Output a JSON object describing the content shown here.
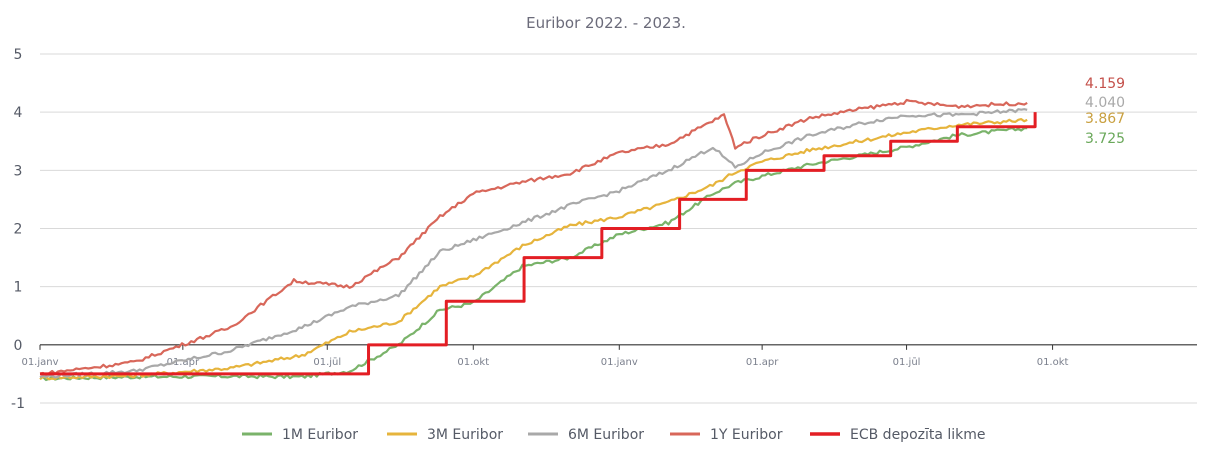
{
  "chart_data": {
    "type": "line",
    "title": "Euribor 2022. - 2023.",
    "xlabel": "",
    "ylabel": "",
    "ylim": [
      -1,
      5
    ],
    "y_ticks": [
      "5",
      "4",
      "3",
      "2",
      "1",
      "0",
      "-1"
    ],
    "x_ticks": [
      "01.janv",
      "01.apr",
      "01.jūl",
      "01.okt",
      "01.janv",
      "01.apr",
      "01.jūl",
      "01.okt"
    ],
    "grid": true,
    "legend": "bottom",
    "end_labels": [
      "4.159",
      "4.040",
      "3.867",
      "3.725"
    ],
    "series": [
      {
        "name": "1M Euribor",
        "color": "#7ab36a",
        "points": [
          [
            "2022-01-01",
            -0.58
          ],
          [
            "2022-03-01",
            -0.55
          ],
          [
            "2022-05-01",
            -0.54
          ],
          [
            "2022-06-15",
            -0.55
          ],
          [
            "2022-07-15",
            -0.45
          ],
          [
            "2022-08-15",
            0.0
          ],
          [
            "2022-09-10",
            0.6
          ],
          [
            "2022-10-01",
            0.72
          ],
          [
            "2022-11-01",
            1.35
          ],
          [
            "2022-12-01",
            1.5
          ],
          [
            "2023-01-01",
            1.9
          ],
          [
            "2023-02-01",
            2.1
          ],
          [
            "2023-03-01",
            2.6
          ],
          [
            "2023-03-15",
            2.78
          ],
          [
            "2023-04-01",
            2.9
          ],
          [
            "2023-05-01",
            3.1
          ],
          [
            "2023-06-01",
            3.25
          ],
          [
            "2023-07-01",
            3.4
          ],
          [
            "2023-08-01",
            3.6
          ],
          [
            "2023-09-15",
            3.725
          ]
        ]
      },
      {
        "name": "3M Euribor",
        "color": "#e6b43c",
        "points": [
          [
            "2022-01-01",
            -0.57
          ],
          [
            "2022-03-01",
            -0.53
          ],
          [
            "2022-05-01",
            -0.4
          ],
          [
            "2022-06-15",
            -0.18
          ],
          [
            "2022-07-15",
            0.22
          ],
          [
            "2022-08-15",
            0.4
          ],
          [
            "2022-09-10",
            1.0
          ],
          [
            "2022-10-01",
            1.18
          ],
          [
            "2022-11-01",
            1.7
          ],
          [
            "2022-12-01",
            2.05
          ],
          [
            "2023-01-01",
            2.2
          ],
          [
            "2023-02-01",
            2.45
          ],
          [
            "2023-03-01",
            2.75
          ],
          [
            "2023-03-15",
            2.97
          ],
          [
            "2023-04-01",
            3.15
          ],
          [
            "2023-05-01",
            3.35
          ],
          [
            "2023-06-01",
            3.5
          ],
          [
            "2023-07-01",
            3.65
          ],
          [
            "2023-08-01",
            3.78
          ],
          [
            "2023-09-15",
            3.867
          ]
        ]
      },
      {
        "name": "6M Euribor",
        "color": "#a9a9a9",
        "points": [
          [
            "2022-01-01",
            -0.55
          ],
          [
            "2022-03-01",
            -0.45
          ],
          [
            "2022-05-01",
            -0.1
          ],
          [
            "2022-06-15",
            0.3
          ],
          [
            "2022-07-15",
            0.65
          ],
          [
            "2022-08-15",
            0.85
          ],
          [
            "2022-09-10",
            1.6
          ],
          [
            "2022-10-01",
            1.8
          ],
          [
            "2022-11-01",
            2.1
          ],
          [
            "2022-12-01",
            2.4
          ],
          [
            "2023-01-01",
            2.65
          ],
          [
            "2023-02-01",
            3.0
          ],
          [
            "2023-03-01",
            3.4
          ],
          [
            "2023-03-15",
            3.05
          ],
          [
            "2023-04-01",
            3.3
          ],
          [
            "2023-05-01",
            3.6
          ],
          [
            "2023-06-01",
            3.8
          ],
          [
            "2023-07-01",
            3.95
          ],
          [
            "2023-08-01",
            3.95
          ],
          [
            "2023-09-15",
            4.04
          ]
        ]
      },
      {
        "name": "1Y Euribor",
        "color": "#d8675a",
        "points": [
          [
            "2022-01-01",
            -0.5
          ],
          [
            "2022-03-01",
            -0.3
          ],
          [
            "2022-05-01",
            0.3
          ],
          [
            "2022-06-10",
            1.1
          ],
          [
            "2022-07-15",
            1.0
          ],
          [
            "2022-08-15",
            1.5
          ],
          [
            "2022-09-10",
            2.2
          ],
          [
            "2022-10-01",
            2.6
          ],
          [
            "2022-11-01",
            2.8
          ],
          [
            "2022-12-01",
            2.95
          ],
          [
            "2023-01-01",
            3.3
          ],
          [
            "2023-02-01",
            3.45
          ],
          [
            "2023-03-08",
            3.95
          ],
          [
            "2023-03-15",
            3.4
          ],
          [
            "2023-04-01",
            3.6
          ],
          [
            "2023-05-01",
            3.9
          ],
          [
            "2023-06-01",
            4.05
          ],
          [
            "2023-07-01",
            4.18
          ],
          [
            "2023-08-01",
            4.1
          ],
          [
            "2023-09-15",
            4.159
          ]
        ]
      },
      {
        "name": "ECB depozīta likme",
        "color": "#e31e24",
        "step": true,
        "points": [
          [
            "2022-01-01",
            -0.5
          ],
          [
            "2022-07-27",
            0.0
          ],
          [
            "2022-09-14",
            0.75
          ],
          [
            "2022-11-02",
            1.5
          ],
          [
            "2022-12-21",
            2.0
          ],
          [
            "2023-02-08",
            2.5
          ],
          [
            "2023-03-22",
            3.0
          ],
          [
            "2023-05-10",
            3.25
          ],
          [
            "2023-06-21",
            3.5
          ],
          [
            "2023-08-02",
            3.75
          ],
          [
            "2023-09-20",
            4.0
          ]
        ]
      }
    ]
  }
}
